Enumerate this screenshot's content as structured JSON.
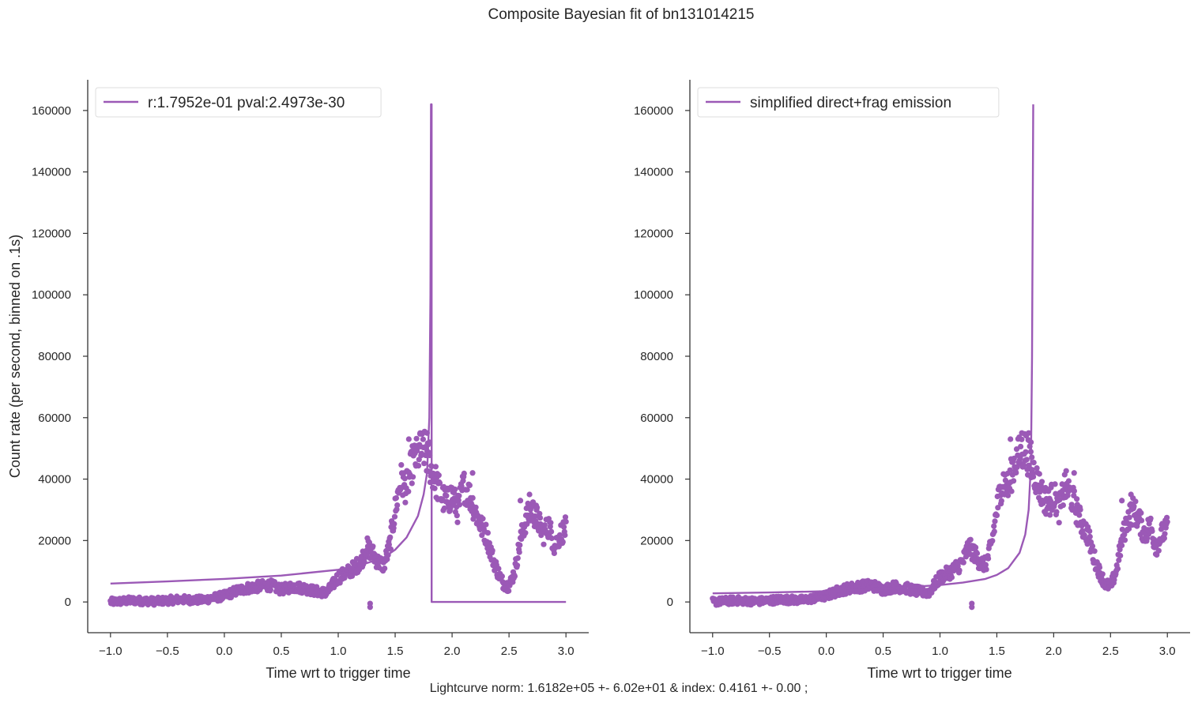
{
  "figure": {
    "suptitle": "Composite Bayesian fit of bn131014215",
    "footnote": "Lightcurve norm: 1.6182e+05 +- 6.02e+01 & index: 0.4161 +- 0.00 ;",
    "color": "#9b59b6"
  },
  "chart_data": [
    {
      "type": "scatter",
      "title": "",
      "xlabel": "Time wrt to trigger time",
      "ylabel": "Count rate (per second, binned on .1s)",
      "xlim": [
        -1.2,
        3.2
      ],
      "ylim": [
        -10000,
        170000
      ],
      "xticks": [
        -1.0,
        -0.5,
        0.0,
        0.5,
        1.0,
        1.5,
        2.0,
        2.5,
        3.0
      ],
      "xtick_labels": [
        "−1.0",
        "−0.5",
        "0.0",
        "0.5",
        "1.0",
        "1.5",
        "2.0",
        "2.5",
        "3.0"
      ],
      "yticks": [
        0,
        20000,
        40000,
        60000,
        80000,
        100000,
        120000,
        140000,
        160000
      ],
      "ytick_labels": [
        "0",
        "20000",
        "40000",
        "60000",
        "80000",
        "100000",
        "120000",
        "140000",
        "160000"
      ],
      "legend": {
        "label": "r:1.7952e-01  pval:2.4973e-30",
        "placement": "upper left"
      },
      "observed_points": {
        "x": [
          -1.0,
          -0.8,
          -0.6,
          -0.4,
          -0.2,
          0.0,
          0.1,
          0.2,
          0.3,
          0.4,
          0.5,
          0.6,
          0.7,
          0.8,
          0.9,
          1.0,
          1.1,
          1.2,
          1.25,
          1.3,
          1.35,
          1.4,
          1.45,
          1.5,
          1.55,
          1.6,
          1.65,
          1.7,
          1.75,
          1.8,
          1.85,
          1.9,
          1.95,
          2.0,
          2.05,
          2.1,
          2.15,
          2.2,
          2.25,
          2.3,
          2.35,
          2.4,
          2.45,
          2.5,
          2.55,
          2.6,
          2.65,
          2.7,
          2.75,
          2.8,
          2.85,
          2.9,
          2.95,
          3.0
        ],
        "y": [
          0,
          500,
          200,
          800,
          600,
          2000,
          3500,
          4500,
          5000,
          5500,
          4000,
          5000,
          4500,
          3500,
          3000,
          8000,
          10000,
          13000,
          18000,
          16000,
          13000,
          12000,
          18000,
          30000,
          40000,
          37000,
          45000,
          48000,
          50000,
          45000,
          40000,
          35000,
          32000,
          35000,
          30000,
          38000,
          35000,
          30000,
          25000,
          22000,
          15000,
          10000,
          6000,
          5000,
          10000,
          20000,
          27000,
          30000,
          27000,
          22000,
          25000,
          18000,
          22000,
          24000
        ]
      },
      "isolated_points": {
        "x": [
          1.28,
          1.28
        ],
        "y": [
          -500,
          -1700
        ]
      },
      "model_curve": {
        "x": [
          -1.0,
          -0.5,
          0.0,
          0.5,
          1.0,
          1.2,
          1.4,
          1.5,
          1.6,
          1.7,
          1.75,
          1.78,
          1.8,
          1.81,
          1.815,
          1.82,
          1.82,
          2.0,
          3.0
        ],
        "y": [
          6000,
          6700,
          7500,
          8600,
          10500,
          12000,
          14500,
          17000,
          21000,
          28000,
          35000,
          42000,
          60000,
          100000,
          162000,
          162000,
          0,
          0,
          0
        ]
      }
    },
    {
      "type": "scatter",
      "title": "",
      "xlabel": "Time wrt to trigger time",
      "ylabel": "",
      "xlim": [
        -1.2,
        3.2
      ],
      "ylim": [
        -10000,
        170000
      ],
      "xticks": [
        -1.0,
        -0.5,
        0.0,
        0.5,
        1.0,
        1.5,
        2.0,
        2.5,
        3.0
      ],
      "xtick_labels": [
        "−1.0",
        "−0.5",
        "0.0",
        "0.5",
        "1.0",
        "1.5",
        "2.0",
        "2.5",
        "3.0"
      ],
      "yticks": [
        0,
        20000,
        40000,
        60000,
        80000,
        100000,
        120000,
        140000,
        160000
      ],
      "ytick_labels": [
        "0",
        "20000",
        "40000",
        "60000",
        "80000",
        "100000",
        "120000",
        "140000",
        "160000"
      ],
      "legend": {
        "label": "simplified direct+frag emission",
        "placement": "upper left"
      },
      "observed_points": {
        "x": [
          -1.0,
          -0.8,
          -0.6,
          -0.4,
          -0.2,
          0.0,
          0.1,
          0.2,
          0.3,
          0.4,
          0.5,
          0.6,
          0.7,
          0.8,
          0.9,
          1.0,
          1.1,
          1.2,
          1.25,
          1.3,
          1.35,
          1.4,
          1.45,
          1.5,
          1.55,
          1.6,
          1.65,
          1.7,
          1.75,
          1.8,
          1.85,
          1.9,
          1.95,
          2.0,
          2.05,
          2.1,
          2.15,
          2.2,
          2.25,
          2.3,
          2.35,
          2.4,
          2.45,
          2.5,
          2.55,
          2.6,
          2.65,
          2.7,
          2.75,
          2.8,
          2.85,
          2.9,
          2.95,
          3.0
        ],
        "y": [
          0,
          500,
          200,
          800,
          600,
          2000,
          3500,
          4500,
          5000,
          5500,
          4000,
          5000,
          4500,
          3500,
          3000,
          8000,
          10000,
          13000,
          18000,
          16000,
          13000,
          12000,
          18000,
          30000,
          40000,
          37000,
          45000,
          48000,
          50000,
          45000,
          40000,
          35000,
          32000,
          35000,
          30000,
          38000,
          35000,
          30000,
          25000,
          22000,
          15000,
          10000,
          6000,
          5000,
          10000,
          20000,
          27000,
          30000,
          27000,
          22000,
          25000,
          18000,
          22000,
          24000
        ]
      },
      "isolated_points": {
        "x": [
          1.28,
          1.28
        ],
        "y": [
          -500,
          -1700
        ]
      },
      "model_curve": {
        "x": [
          -1.0,
          -0.5,
          0.0,
          0.5,
          1.0,
          1.2,
          1.4,
          1.5,
          1.6,
          1.7,
          1.75,
          1.78,
          1.8,
          1.81,
          1.815,
          1.82
        ],
        "y": [
          2800,
          3100,
          3500,
          4300,
          5500,
          6300,
          7500,
          8800,
          11000,
          16000,
          22000,
          30000,
          45000,
          80000,
          120000,
          162000
        ]
      }
    }
  ]
}
